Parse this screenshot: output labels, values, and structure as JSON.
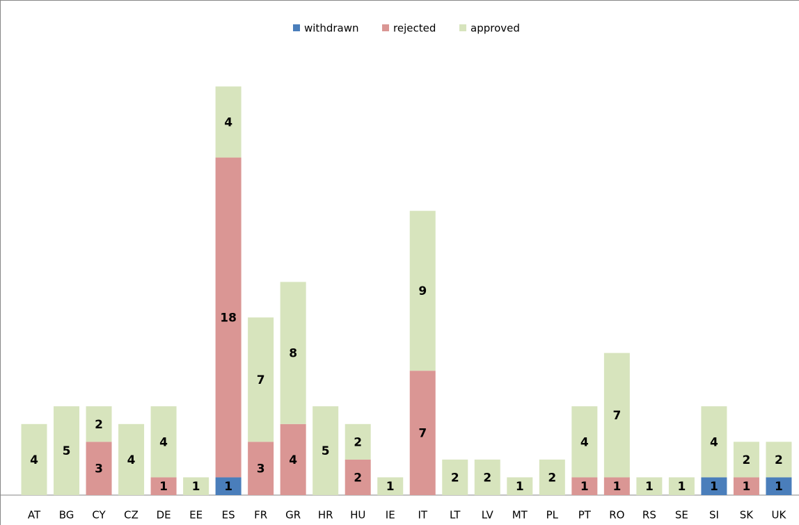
{
  "chart_data": {
    "type": "stacked_bar",
    "categories": [
      "AT",
      "BG",
      "CY",
      "CZ",
      "DE",
      "EE",
      "ES",
      "FR",
      "GR",
      "HR",
      "HU",
      "IE",
      "IT",
      "LT",
      "LV",
      "MT",
      "PL",
      "PT",
      "RO",
      "RS",
      "SE",
      "SI",
      "SK",
      "UK"
    ],
    "series": [
      {
        "name": "withdrawn",
        "color": "#4a7ebb",
        "values": [
          null,
          null,
          null,
          null,
          null,
          null,
          1,
          null,
          null,
          null,
          null,
          null,
          null,
          null,
          null,
          null,
          null,
          null,
          null,
          null,
          null,
          1,
          null,
          1
        ]
      },
      {
        "name": "rejected",
        "color": "#da9694",
        "values": [
          null,
          null,
          3,
          null,
          1,
          null,
          18,
          3,
          4,
          null,
          2,
          null,
          7,
          null,
          null,
          null,
          null,
          1,
          1,
          null,
          null,
          null,
          1,
          null
        ]
      },
      {
        "name": "approved",
        "color": "#d7e4bd",
        "values": [
          4,
          5,
          2,
          4,
          4,
          1,
          4,
          7,
          8,
          5,
          2,
          1,
          9,
          2,
          2,
          1,
          2,
          4,
          7,
          1,
          1,
          4,
          2,
          2
        ]
      }
    ],
    "legend": "top"
  }
}
